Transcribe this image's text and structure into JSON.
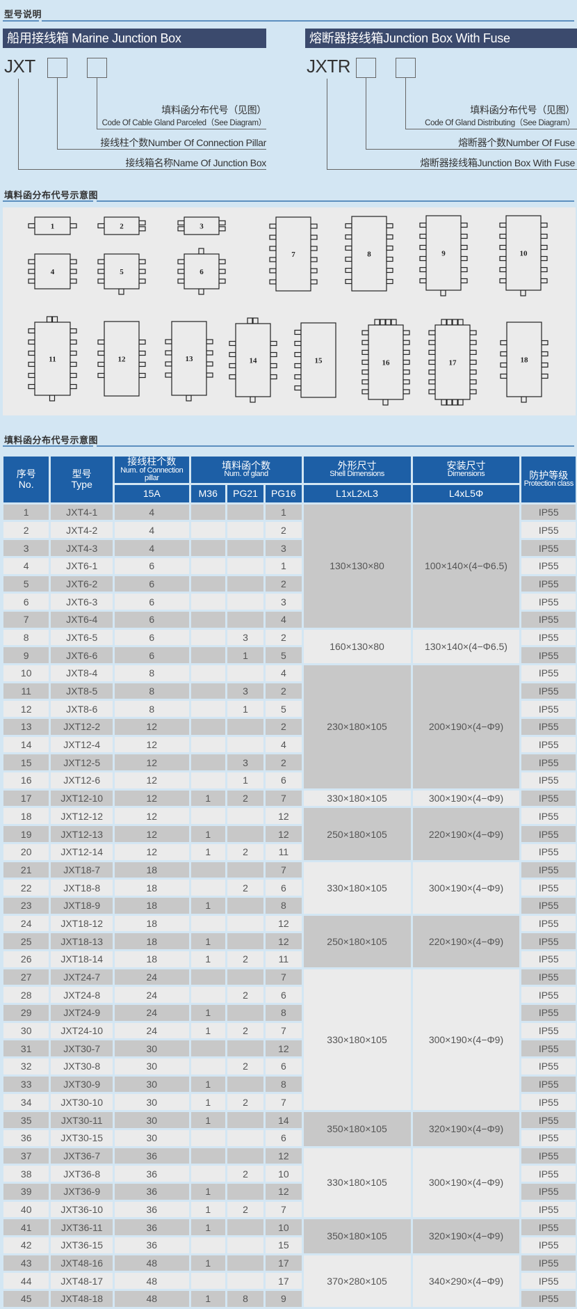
{
  "section1": {
    "title": "型号说明"
  },
  "marine": {
    "bar_title": "船用接线箱 Marine Junction Box",
    "code": "JXT",
    "label_code_cn": "填料函分布代号（见图）",
    "label_code_en": "Code Of Cable Gland Parceled（See Diagram）",
    "label_pillar": "接线柱个数Number Of Connection Pillar",
    "label_name": "接线箱名称Name Of Junction Box"
  },
  "fuse": {
    "bar_title": "熔断器接线箱Junction Box With Fuse",
    "code": "JXTR",
    "label_code_cn": "填料函分布代号（见图）",
    "label_code_en": "Code Of Gland Distributing（See Diagram）",
    "label_fuse": "熔断器个数Number Of Fuse",
    "label_name": "熔断器接线箱Junction Box With Fuse"
  },
  "section2": {
    "title": "填料函分布代号示意图"
  },
  "diagram": {
    "labels": [
      "1",
      "2",
      "3",
      "4",
      "5",
      "6",
      "7",
      "8",
      "9",
      "10",
      "11",
      "12",
      "13",
      "14",
      "15",
      "16",
      "17",
      "18"
    ]
  },
  "section3": {
    "title": "填料函分布代号示意图"
  },
  "table": {
    "headers": {
      "no_cn": "序号",
      "no_en": "No.",
      "type_cn": "型号",
      "type_en": "Type",
      "pillar_cn": "接线柱个数",
      "pillar_en": "Num. of Connection pillar",
      "gland_cn": "填料函个数",
      "gland_en": "Num. of gland",
      "shell_cn": "外形尺寸",
      "shell_en": "Shell Dimensions",
      "install_cn": "安装尺寸",
      "install_en": "Dimensions",
      "prot_cn": "防护等级",
      "prot_en": "Protection class",
      "a15": "15A",
      "m36": "M36",
      "pg21": "PG21",
      "pg16": "PG16",
      "l123": "L1xL2xL3",
      "l45": "L4xL5Φ"
    },
    "rows": [
      [
        "1",
        "JXT4-1",
        "4",
        "",
        "",
        "1",
        "IP55"
      ],
      [
        "2",
        "JXT4-2",
        "4",
        "",
        "",
        "2",
        "IP55"
      ],
      [
        "3",
        "JXT4-3",
        "4",
        "",
        "",
        "3",
        "IP55"
      ],
      [
        "4",
        "JXT6-1",
        "6",
        "",
        "",
        "1",
        "IP55"
      ],
      [
        "5",
        "JXT6-2",
        "6",
        "",
        "",
        "2",
        "IP55"
      ],
      [
        "6",
        "JXT6-3",
        "6",
        "",
        "",
        "3",
        "IP55"
      ],
      [
        "7",
        "JXT6-4",
        "6",
        "",
        "",
        "4",
        "IP55"
      ],
      [
        "8",
        "JXT6-5",
        "6",
        "",
        "3",
        "2",
        "IP55"
      ],
      [
        "9",
        "JXT6-6",
        "6",
        "",
        "1",
        "5",
        "IP55"
      ],
      [
        "10",
        "JXT8-4",
        "8",
        "",
        "",
        "4",
        "IP55"
      ],
      [
        "11",
        "JXT8-5",
        "8",
        "",
        "3",
        "2",
        "IP55"
      ],
      [
        "12",
        "JXT8-6",
        "8",
        "",
        "1",
        "5",
        "IP55"
      ],
      [
        "13",
        "JXT12-2",
        "12",
        "",
        "",
        "2",
        "IP55"
      ],
      [
        "14",
        "JXT12-4",
        "12",
        "",
        "",
        "4",
        "IP55"
      ],
      [
        "15",
        "JXT12-5",
        "12",
        "",
        "3",
        "2",
        "IP55"
      ],
      [
        "16",
        "JXT12-6",
        "12",
        "",
        "1",
        "6",
        "IP55"
      ],
      [
        "17",
        "JXT12-10",
        "12",
        "1",
        "2",
        "7",
        "IP55"
      ],
      [
        "18",
        "JXT12-12",
        "12",
        "",
        "",
        "12",
        "IP55"
      ],
      [
        "19",
        "JXT12-13",
        "12",
        "1",
        "",
        "12",
        "IP55"
      ],
      [
        "20",
        "JXT12-14",
        "12",
        "1",
        "2",
        "11",
        "IP55"
      ],
      [
        "21",
        "JXT18-7",
        "18",
        "",
        "",
        "7",
        "IP55"
      ],
      [
        "22",
        "JXT18-8",
        "18",
        "",
        "2",
        "6",
        "IP55"
      ],
      [
        "23",
        "JXT18-9",
        "18",
        "1",
        "",
        "8",
        "IP55"
      ],
      [
        "24",
        "JXT18-12",
        "18",
        "",
        "",
        "12",
        "IP55"
      ],
      [
        "25",
        "JXT18-13",
        "18",
        "1",
        "",
        "12",
        "IP55"
      ],
      [
        "26",
        "JXT18-14",
        "18",
        "1",
        "2",
        "11",
        "IP55"
      ],
      [
        "27",
        "JXT24-7",
        "24",
        "",
        "",
        "7",
        "IP55"
      ],
      [
        "28",
        "JXT24-8",
        "24",
        "",
        "2",
        "6",
        "IP55"
      ],
      [
        "29",
        "JXT24-9",
        "24",
        "1",
        "",
        "8",
        "IP55"
      ],
      [
        "30",
        "JXT24-10",
        "24",
        "1",
        "2",
        "7",
        "IP55"
      ],
      [
        "31",
        "JXT30-7",
        "30",
        "",
        "",
        "12",
        "IP55"
      ],
      [
        "32",
        "JXT30-8",
        "30",
        "",
        "2",
        "6",
        "IP55"
      ],
      [
        "33",
        "JXT30-9",
        "30",
        "1",
        "",
        "8",
        "IP55"
      ],
      [
        "34",
        "JXT30-10",
        "30",
        "1",
        "2",
        "7",
        "IP55"
      ],
      [
        "35",
        "JXT30-11",
        "30",
        "1",
        "",
        "14",
        "IP55"
      ],
      [
        "36",
        "JXT30-15",
        "30",
        "",
        "",
        "6",
        "IP55"
      ],
      [
        "37",
        "JXT36-7",
        "36",
        "",
        "",
        "12",
        "IP55"
      ],
      [
        "38",
        "JXT36-8",
        "36",
        "",
        "2",
        "10",
        "IP55"
      ],
      [
        "39",
        "JXT36-9",
        "36",
        "1",
        "",
        "12",
        "IP55"
      ],
      [
        "40",
        "JXT36-10",
        "36",
        "1",
        "2",
        "7",
        "IP55"
      ],
      [
        "41",
        "JXT36-11",
        "36",
        "1",
        "",
        "10",
        "IP55"
      ],
      [
        "42",
        "JXT36-15",
        "36",
        "",
        "",
        "15",
        "IP55"
      ],
      [
        "43",
        "JXT48-16",
        "48",
        "1",
        "",
        "17",
        "IP55"
      ],
      [
        "44",
        "JXT48-17",
        "48",
        "",
        "",
        "17",
        "IP55"
      ],
      [
        "45",
        "JXT48-18",
        "48",
        "1",
        "8",
        "9",
        "IP55"
      ]
    ],
    "dimension_groups": [
      {
        "from": 1,
        "to": 7,
        "shell": "130×130×80",
        "install": "100×140×(4−Φ6.5)"
      },
      {
        "from": 8,
        "to": 9,
        "shell": "160×130×80",
        "install": "130×140×(4−Φ6.5)"
      },
      {
        "from": 10,
        "to": 16,
        "shell": "230×180×105",
        "install": "200×190×(4−Φ9)"
      },
      {
        "from": 17,
        "to": 17,
        "shell": "330×180×105",
        "install": "300×190×(4−Φ9)"
      },
      {
        "from": 18,
        "to": 20,
        "shell": "250×180×105",
        "install": "220×190×(4−Φ9)"
      },
      {
        "from": 21,
        "to": 23,
        "shell": "330×180×105",
        "install": "300×190×(4−Φ9)"
      },
      {
        "from": 24,
        "to": 26,
        "shell": "250×180×105",
        "install": "220×190×(4−Φ9)"
      },
      {
        "from": 27,
        "to": 34,
        "shell": "330×180×105",
        "install": "300×190×(4−Φ9)"
      },
      {
        "from": 35,
        "to": 36,
        "shell": "350×180×105",
        "install": "320×190×(4−Φ9)"
      },
      {
        "from": 37,
        "to": 40,
        "shell": "330×180×105",
        "install": "300×190×(4−Φ9)"
      },
      {
        "from": 41,
        "to": 42,
        "shell": "350×180×105",
        "install": "320×190×(4−Φ9)"
      },
      {
        "from": 43,
        "to": 45,
        "shell": "370×280×105",
        "install": "340×290×(4−Φ9)"
      }
    ]
  },
  "colors": {
    "background": "#d3e6f3",
    "title_bar": "#3b4a6d",
    "header_blue": "#1d5fa6",
    "row_dark": "#c8c8c8",
    "row_light": "#ebebeb"
  }
}
